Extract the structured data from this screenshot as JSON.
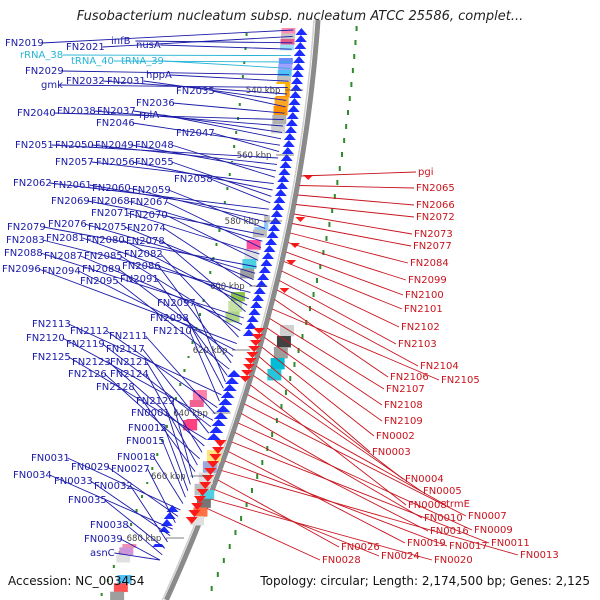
{
  "title": "Fusobacterium nucleatum subsp. nucleatum ATCC 25586, complet...",
  "footer": {
    "accession": "Accession: NC_003454",
    "topology": "Topology: circular; Length: 2,174,500 bp; Genes: 2,125"
  },
  "colors": {
    "left_label": "#1a1aa8",
    "rna_label": "#27b4d6",
    "right_label": "#c8141e",
    "backbone": "#8a8a8a",
    "tick": "#2d8a2d"
  },
  "scale_labels": [
    "540 kbp",
    "560 kbp",
    "580 kbp",
    "600 kbp",
    "620 kbp",
    "640 kbp",
    "660 kbp",
    "680 kbp"
  ],
  "left_genes": [
    {
      "id": "L1",
      "label": "FN2019",
      "rna": false
    },
    {
      "id": "L2",
      "label": "FN2021",
      "rna": false
    },
    {
      "id": "L3",
      "label": "infB",
      "rna": false
    },
    {
      "id": "L4",
      "label": "nusA",
      "rna": false
    },
    {
      "id": "L5",
      "label": "rRNA_38",
      "rna": true
    },
    {
      "id": "L6",
      "label": "tRNA_40",
      "rna": true
    },
    {
      "id": "L7",
      "label": "tRNA_39",
      "rna": true
    },
    {
      "id": "L8",
      "label": "FN2029",
      "rna": false
    },
    {
      "id": "L9",
      "label": "hppA",
      "rna": false
    },
    {
      "id": "L10",
      "label": "gmk",
      "rna": false
    },
    {
      "id": "L11",
      "label": "FN2032",
      "rna": false
    },
    {
      "id": "L12",
      "label": "FN2031",
      "rna": false
    },
    {
      "id": "L13",
      "label": "FN2035",
      "rna": false
    },
    {
      "id": "L14",
      "label": "FN2036",
      "rna": false
    },
    {
      "id": "L15",
      "label": "FN2040",
      "rna": false
    },
    {
      "id": "L16",
      "label": "FN2038",
      "rna": false
    },
    {
      "id": "L17",
      "label": "FN2037",
      "rna": false
    },
    {
      "id": "L18",
      "label": "rplA",
      "rna": false
    },
    {
      "id": "L19",
      "label": "FN2046",
      "rna": false
    },
    {
      "id": "L20",
      "label": "FN2047",
      "rna": false
    },
    {
      "id": "L21",
      "label": "FN2051",
      "rna": false
    },
    {
      "id": "L22",
      "label": "FN2050",
      "rna": false
    },
    {
      "id": "L23",
      "label": "FN2049",
      "rna": false
    },
    {
      "id": "L24",
      "label": "FN2048",
      "rna": false
    },
    {
      "id": "L25",
      "label": "FN2057",
      "rna": false
    },
    {
      "id": "L26",
      "label": "FN2056",
      "rna": false
    },
    {
      "id": "L27",
      "label": "FN2055",
      "rna": false
    },
    {
      "id": "L28",
      "label": "FN2058",
      "rna": false
    },
    {
      "id": "L29",
      "label": "FN2062",
      "rna": false
    },
    {
      "id": "L30",
      "label": "FN2061",
      "rna": false
    },
    {
      "id": "L31",
      "label": "FN2060",
      "rna": false
    },
    {
      "id": "L32",
      "label": "FN2059",
      "rna": false
    },
    {
      "id": "L33",
      "label": "FN2069",
      "rna": false
    },
    {
      "id": "L34",
      "label": "FN2068",
      "rna": false
    },
    {
      "id": "L35",
      "label": "FN2067",
      "rna": false
    },
    {
      "id": "L36",
      "label": "FN2071",
      "rna": false
    },
    {
      "id": "L37",
      "label": "FN2070",
      "rna": false
    },
    {
      "id": "L38",
      "label": "FN2079",
      "rna": false
    },
    {
      "id": "L39",
      "label": "FN2076",
      "rna": false
    },
    {
      "id": "L40",
      "label": "FN2075",
      "rna": false
    },
    {
      "id": "L41",
      "label": "FN2074",
      "rna": false
    },
    {
      "id": "L42",
      "label": "FN2083",
      "rna": false
    },
    {
      "id": "L43",
      "label": "FN2081",
      "rna": false
    },
    {
      "id": "L44",
      "label": "FN2080",
      "rna": false
    },
    {
      "id": "L45",
      "label": "FN2078",
      "rna": false
    },
    {
      "id": "L46",
      "label": "FN2088",
      "rna": false
    },
    {
      "id": "L47",
      "label": "FN2087",
      "rna": false
    },
    {
      "id": "L48",
      "label": "FN2085",
      "rna": false
    },
    {
      "id": "L49",
      "label": "FN2082",
      "rna": false
    },
    {
      "id": "L50",
      "label": "FN2096",
      "rna": false
    },
    {
      "id": "L51",
      "label": "FN2094",
      "rna": false
    },
    {
      "id": "L52",
      "label": "FN2089",
      "rna": false
    },
    {
      "id": "L53",
      "label": "FN2086",
      "rna": false
    },
    {
      "id": "L54",
      "label": "FN2095",
      "rna": false
    },
    {
      "id": "L55",
      "label": "FN2091",
      "rna": false
    },
    {
      "id": "L56",
      "label": "FN2097",
      "rna": false
    },
    {
      "id": "L57",
      "label": "FN2098",
      "rna": false
    },
    {
      "id": "L58",
      "label": "FN2113",
      "rna": false
    },
    {
      "id": "L59",
      "label": "FN2110",
      "rna": false
    },
    {
      "id": "L60",
      "label": "FN2112",
      "rna": false
    },
    {
      "id": "L61",
      "label": "FN2111",
      "rna": false
    },
    {
      "id": "L62",
      "label": "FN2120",
      "rna": false
    },
    {
      "id": "L63",
      "label": "FN2119",
      "rna": false
    },
    {
      "id": "L64",
      "label": "FN2117",
      "rna": false
    },
    {
      "id": "L65",
      "label": "FN2125",
      "rna": false
    },
    {
      "id": "L66",
      "label": "FN2123",
      "rna": false
    },
    {
      "id": "L67",
      "label": "FN2121",
      "rna": false
    },
    {
      "id": "L68",
      "label": "FN2126",
      "rna": false
    },
    {
      "id": "L69",
      "label": "FN2124",
      "rna": false
    },
    {
      "id": "L70",
      "label": "FN2128",
      "rna": false
    },
    {
      "id": "L71",
      "label": "FN2129",
      "rna": false
    },
    {
      "id": "L72",
      "label": "FN0001",
      "rna": false
    },
    {
      "id": "L73",
      "label": "FN0012",
      "rna": false
    },
    {
      "id": "L74",
      "label": "FN0015",
      "rna": false
    },
    {
      "id": "L75",
      "label": "FN0018",
      "rna": false
    },
    {
      "id": "L76",
      "label": "FN0031",
      "rna": false
    },
    {
      "id": "L77",
      "label": "FN0029",
      "rna": false
    },
    {
      "id": "L78",
      "label": "FN0027",
      "rna": false
    },
    {
      "id": "L79",
      "label": "FN0034",
      "rna": false
    },
    {
      "id": "L80",
      "label": "FN0033",
      "rna": false
    },
    {
      "id": "L81",
      "label": "FN0032",
      "rna": false
    },
    {
      "id": "L82",
      "label": "FN0035",
      "rna": false
    },
    {
      "id": "L83",
      "label": "FN0038",
      "rna": false
    },
    {
      "id": "L84",
      "label": "FN0039",
      "rna": false
    },
    {
      "id": "L85",
      "label": "asnC",
      "rna": false
    }
  ],
  "right_genes": [
    {
      "id": "R1",
      "label": "pgi"
    },
    {
      "id": "R2",
      "label": "FN2065"
    },
    {
      "id": "R3",
      "label": "FN2066"
    },
    {
      "id": "R4",
      "label": "FN2072"
    },
    {
      "id": "R5",
      "label": "FN2073"
    },
    {
      "id": "R6",
      "label": "FN2077"
    },
    {
      "id": "R7",
      "label": "FN2084"
    },
    {
      "id": "R8",
      "label": "FN2099"
    },
    {
      "id": "R9",
      "label": "FN2100"
    },
    {
      "id": "R10",
      "label": "FN2101"
    },
    {
      "id": "R11",
      "label": "FN2102"
    },
    {
      "id": "R12",
      "label": "FN2103"
    },
    {
      "id": "R13",
      "label": "FN2104"
    },
    {
      "id": "R14",
      "label": "FN2106"
    },
    {
      "id": "R15",
      "label": "FN2105"
    },
    {
      "id": "R16",
      "label": "FN2107"
    },
    {
      "id": "R17",
      "label": "FN2108"
    },
    {
      "id": "R18",
      "label": "FN2109"
    },
    {
      "id": "R19",
      "label": "FN0002"
    },
    {
      "id": "R20",
      "label": "FN0003"
    },
    {
      "id": "R21",
      "label": "FN0004"
    },
    {
      "id": "R22",
      "label": "FN0005"
    },
    {
      "id": "R23",
      "label": "FN0008"
    },
    {
      "id": "R24",
      "label": "trmE"
    },
    {
      "id": "R25",
      "label": "FN0007"
    },
    {
      "id": "R26",
      "label": "FN0010"
    },
    {
      "id": "R27",
      "label": "FN0009"
    },
    {
      "id": "R28",
      "label": "FN0016"
    },
    {
      "id": "R29",
      "label": "FN0011"
    },
    {
      "id": "R30",
      "label": "FN0019"
    },
    {
      "id": "R31",
      "label": "FN0017"
    },
    {
      "id": "R32",
      "label": "FN0013"
    },
    {
      "id": "R33",
      "label": "FN0026"
    },
    {
      "id": "R34",
      "label": "FN0024"
    },
    {
      "id": "R35",
      "label": "FN0020"
    },
    {
      "id": "R36",
      "label": "FN0028"
    }
  ]
}
